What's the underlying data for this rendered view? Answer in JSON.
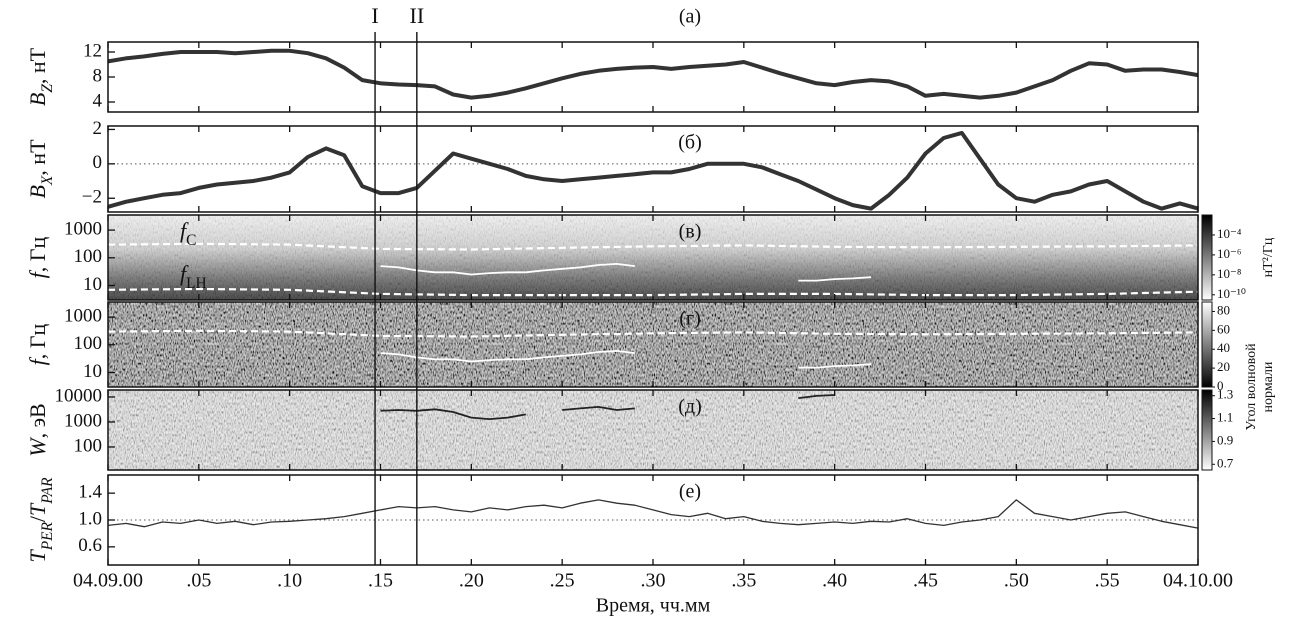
{
  "x_axis": {
    "lim": [
      0,
      60
    ],
    "label": "Время, чч.мм",
    "ticks": [
      {
        "value": 0,
        "label": "04.09.00"
      },
      {
        "value": 5,
        "label": ".05"
      },
      {
        "value": 10,
        "label": ".10"
      },
      {
        "value": 15,
        "label": ".15"
      },
      {
        "value": 20,
        "label": ".20"
      },
      {
        "value": 25,
        "label": ".25"
      },
      {
        "value": 30,
        "label": ".30"
      },
      {
        "value": 35,
        "label": ".35"
      },
      {
        "value": 40,
        "label": ".40"
      },
      {
        "value": 45,
        "label": ".45"
      },
      {
        "value": 50,
        "label": ".50"
      },
      {
        "value": 55,
        "label": ".55"
      },
      {
        "value": 60,
        "label": "04.10.00"
      }
    ]
  },
  "markers": [
    {
      "label": "I",
      "x": 14.7
    },
    {
      "label": "II",
      "x": 17.0
    }
  ],
  "chart_data": [
    {
      "type": "line",
      "panel_label": "(a)",
      "ylabel": [
        {
          "text": "B",
          "italic": true
        },
        {
          "text": "Z",
          "italic": true,
          "sub": true
        },
        {
          "text": ", нТ"
        }
      ],
      "ylim": [
        2.4,
        13.6
      ],
      "yticks": [
        4,
        8,
        12
      ],
      "series": [
        {
          "color": "#333333",
          "x": [
            0,
            1,
            2,
            3,
            4,
            5,
            6,
            7,
            8,
            9,
            10,
            11,
            12,
            13,
            14,
            15,
            16,
            17,
            18,
            19,
            20,
            21,
            22,
            23,
            24,
            25,
            26,
            27,
            28,
            29,
            30,
            31,
            32,
            33,
            34,
            35,
            36,
            37,
            38,
            39,
            40,
            41,
            42,
            43,
            44,
            45,
            46,
            47,
            48,
            49,
            50,
            51,
            52,
            53,
            54,
            55,
            56,
            57,
            58,
            59,
            60
          ],
          "values": [
            10.5,
            11,
            11.3,
            11.7,
            12,
            12,
            12,
            11.8,
            12,
            12.2,
            12.2,
            11.8,
            11,
            9.5,
            7.5,
            7,
            6.8,
            6.7,
            6.5,
            5.2,
            4.7,
            5,
            5.5,
            6.2,
            7,
            7.8,
            8.5,
            9,
            9.3,
            9.5,
            9.6,
            9.3,
            9.6,
            9.8,
            10,
            10.4,
            9.5,
            8.6,
            7.8,
            7,
            6.7,
            7.2,
            7.5,
            7.3,
            6.5,
            5,
            5.3,
            5,
            4.7,
            5,
            5.5,
            6.5,
            7.5,
            9,
            10.2,
            10,
            9,
            9.2,
            9.2,
            8.8,
            8.3
          ]
        }
      ]
    },
    {
      "type": "line",
      "panel_label": "(б)",
      "ylabel": [
        {
          "text": "B",
          "italic": true
        },
        {
          "text": "X",
          "italic": true,
          "sub": true
        },
        {
          "text": ", нТ"
        }
      ],
      "ylim": [
        -2.8,
        2.2
      ],
      "yticks": [
        {
          "value": -2,
          "label": "−2"
        },
        0,
        2
      ],
      "hline": 0,
      "series": [
        {
          "color": "#333333",
          "x": [
            0,
            1,
            2,
            3,
            4,
            5,
            6,
            7,
            8,
            9,
            10,
            11,
            12,
            13,
            14,
            15,
            16,
            17,
            18,
            19,
            20,
            21,
            22,
            23,
            24,
            25,
            26,
            27,
            28,
            29,
            30,
            31,
            32,
            33,
            34,
            35,
            36,
            37,
            38,
            39,
            40,
            41,
            42,
            43,
            44,
            45,
            46,
            47,
            48,
            49,
            50,
            51,
            52,
            53,
            54,
            55,
            56,
            57,
            58,
            59,
            60
          ],
          "values": [
            -2.5,
            -2.2,
            -2,
            -1.8,
            -1.7,
            -1.4,
            -1.2,
            -1.1,
            -1,
            -0.8,
            -0.5,
            0.4,
            0.9,
            0.5,
            -1.3,
            -1.7,
            -1.7,
            -1.4,
            -0.4,
            0.6,
            0.3,
            0,
            -0.3,
            -0.7,
            -0.9,
            -1,
            -0.9,
            -0.8,
            -0.7,
            -0.6,
            -0.5,
            -0.5,
            -0.3,
            0,
            0,
            0,
            -0.2,
            -0.6,
            -1,
            -1.5,
            -2,
            -2.4,
            -2.6,
            -1.8,
            -0.8,
            0.6,
            1.5,
            1.8,
            0.3,
            -1.2,
            -2,
            -2.2,
            -1.8,
            -1.6,
            -1.2,
            -1,
            -1.6,
            -2.2,
            -2.6,
            -2.3,
            -2.6
          ]
        }
      ]
    },
    {
      "type": "spectrogram",
      "panel_label": "(в)",
      "ylabel": [
        {
          "text": "f",
          "italic": true
        },
        {
          "text": ", Гц"
        }
      ],
      "ylim": [
        3,
        3500
      ],
      "log": true,
      "yticks": [
        10,
        100,
        1000
      ],
      "annotations": [
        [
          {
            "text": "f",
            "italic": true
          },
          {
            "text": "C",
            "sub": true
          }
        ],
        [
          {
            "text": "f",
            "italic": true
          },
          {
            "text": "LH",
            "sub": true
          }
        ]
      ],
      "colorbar": {
        "lim": [
          3e-11,
          0.01
        ],
        "log": true,
        "colors": [
          "#ffffff",
          "#000000"
        ],
        "label": [
          "нТ²/Гц"
        ],
        "ticks": [
          {
            "value": 0.0001,
            "label": "10⁻⁴"
          },
          {
            "value": 1e-06,
            "label": "10⁻⁶"
          },
          {
            "value": 1e-08,
            "label": "10⁻⁸"
          },
          {
            "value": 1e-10,
            "label": "10⁻¹⁰"
          }
        ]
      },
      "series": [
        {
          "color": "#ffffff",
          "dash": true,
          "x": [
            0,
            5,
            10,
            15,
            20,
            25,
            30,
            35,
            40,
            45,
            50,
            55,
            60
          ],
          "values": [
            300,
            320,
            300,
            210,
            200,
            230,
            260,
            280,
            250,
            240,
            250,
            260,
            280
          ]
        },
        {
          "color": "#ffffff",
          "dash": true,
          "x": [
            0,
            5,
            10,
            15,
            20,
            25,
            30,
            35,
            40,
            45,
            50,
            55,
            60
          ],
          "values": [
            7,
            7.5,
            7,
            5,
            4.5,
            4.5,
            4.5,
            5,
            5,
            4.5,
            4.5,
            5,
            6
          ]
        },
        {
          "color": "#ffffff",
          "x": [
            15,
            16,
            17,
            18,
            19,
            20,
            21,
            22,
            23,
            24,
            25,
            26,
            27,
            28,
            29,
            33,
            38,
            39,
            40,
            41,
            42
          ],
          "values": [
            50,
            45,
            35,
            30,
            30,
            25,
            28,
            30,
            30,
            35,
            40,
            45,
            55,
            60,
            50,
            null,
            15,
            15,
            17,
            18,
            20
          ]
        }
      ]
    },
    {
      "type": "spectrogram",
      "panel_label": "(г)",
      "ylabel": [
        {
          "text": "f",
          "italic": true
        },
        {
          "text": ", Гц"
        }
      ],
      "ylim": [
        3,
        3500
      ],
      "log": true,
      "yticks": [
        10,
        100,
        1000
      ],
      "colorbar": {
        "lim": [
          0,
          90
        ],
        "log": false,
        "colors": [
          "#000000",
          "#ffffff"
        ],
        "label": [
          "Угол волновой",
          "нормали"
        ],
        "ticks": [
          0,
          20,
          40,
          60,
          80
        ]
      },
      "series": [
        {
          "color": "#ffffff",
          "dash": true,
          "x": [
            0,
            5,
            10,
            15,
            20,
            25,
            30,
            35,
            40,
            45,
            50,
            55,
            60
          ],
          "values": [
            300,
            320,
            300,
            210,
            200,
            230,
            260,
            280,
            250,
            240,
            250,
            260,
            280
          ]
        },
        {
          "color": "#ffffff",
          "x": [
            15,
            16,
            17,
            18,
            19,
            20,
            21,
            22,
            23,
            24,
            25,
            26,
            27,
            28,
            29,
            33,
            38,
            39,
            40,
            41,
            42
          ],
          "values": [
            50,
            45,
            35,
            30,
            30,
            25,
            28,
            30,
            30,
            35,
            40,
            45,
            55,
            60,
            50,
            null,
            15,
            15,
            17,
            18,
            20
          ]
        }
      ]
    },
    {
      "type": "spectrogram",
      "panel_label": "(д)",
      "ylabel": [
        {
          "text": "W",
          "italic": true
        },
        {
          "text": ", эВ"
        }
      ],
      "ylim": [
        12,
        19000
      ],
      "log": true,
      "yticks": [
        100,
        1000,
        10000
      ],
      "colorbar": {
        "lim": [
          0.65,
          1.35
        ],
        "log": false,
        "colors": [
          "#ffffff",
          "#000000"
        ],
        "ticks": [
          {
            "value": 0.7,
            "label": "0.7"
          },
          {
            "value": 0.9,
            "label": "0.9"
          },
          {
            "value": 1.1,
            "label": "1.1"
          },
          {
            "value": 1.3,
            "label": "1.3"
          }
        ]
      },
      "series": [
        {
          "color": "#222222",
          "x": [
            15,
            16,
            17,
            18,
            19,
            20,
            21,
            22,
            23,
            24,
            25,
            26,
            27,
            28,
            29,
            33,
            38,
            39,
            40
          ],
          "values": [
            2800,
            3000,
            2800,
            3200,
            2500,
            1500,
            1300,
            1500,
            2000,
            null,
            3000,
            3500,
            4000,
            3000,
            3500,
            null,
            9000,
            11000,
            12000
          ]
        }
      ]
    },
    {
      "type": "line",
      "panel_label": "(е)",
      "ylabel": [
        {
          "text": "T",
          "italic": true
        },
        {
          "text": "PER",
          "italic": true,
          "sub": true
        },
        {
          "text": "/"
        },
        {
          "text": "T",
          "italic": true
        },
        {
          "text": "PAR",
          "italic": true,
          "sub": true
        }
      ],
      "ylim": [
        0.33,
        1.67
      ],
      "yticks": [
        0.6,
        {
          "value": 1,
          "label": "1.0"
        },
        1.4
      ],
      "hline": 1,
      "series": [
        {
          "color": "#333333",
          "thin": true,
          "x": [
            0,
            1,
            2,
            3,
            4,
            5,
            6,
            7,
            8,
            9,
            10,
            11,
            12,
            13,
            14,
            15,
            16,
            17,
            18,
            19,
            20,
            21,
            22,
            23,
            24,
            25,
            26,
            27,
            28,
            29,
            30,
            31,
            32,
            33,
            34,
            35,
            36,
            37,
            38,
            39,
            40,
            41,
            42,
            43,
            44,
            45,
            46,
            47,
            48,
            49,
            50,
            51,
            52,
            53,
            54,
            55,
            56,
            57,
            58,
            59,
            60
          ],
          "values": [
            0.92,
            0.95,
            0.9,
            0.97,
            0.95,
            1.0,
            0.95,
            0.98,
            0.93,
            0.97,
            0.98,
            1.0,
            1.02,
            1.05,
            1.1,
            1.15,
            1.2,
            1.18,
            1.2,
            1.15,
            1.12,
            1.18,
            1.15,
            1.2,
            1.22,
            1.18,
            1.25,
            1.3,
            1.25,
            1.22,
            1.15,
            1.08,
            1.05,
            1.1,
            1.02,
            1.05,
            0.98,
            0.95,
            0.93,
            0.95,
            0.97,
            0.95,
            0.98,
            0.97,
            1.02,
            0.95,
            0.92,
            0.97,
            1.0,
            1.05,
            1.3,
            1.1,
            1.05,
            1.0,
            1.05,
            1.1,
            1.12,
            1.05,
            0.98,
            0.93,
            0.88
          ]
        }
      ]
    }
  ]
}
